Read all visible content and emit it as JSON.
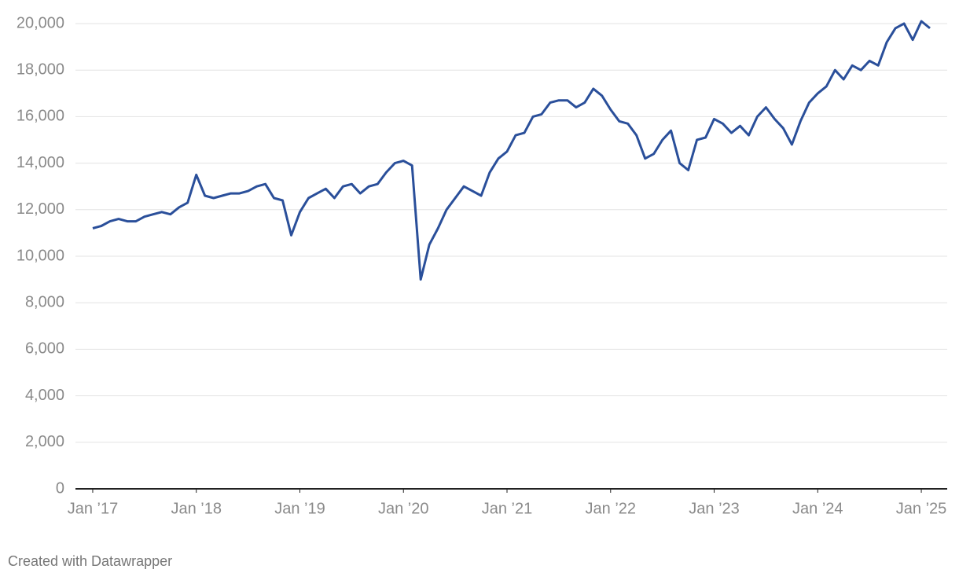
{
  "chart_data": {
    "type": "line",
    "x": [
      "2017-01",
      "2017-02",
      "2017-03",
      "2017-04",
      "2017-05",
      "2017-06",
      "2017-07",
      "2017-08",
      "2017-09",
      "2017-10",
      "2017-11",
      "2017-12",
      "2018-01",
      "2018-02",
      "2018-03",
      "2018-04",
      "2018-05",
      "2018-06",
      "2018-07",
      "2018-08",
      "2018-09",
      "2018-10",
      "2018-11",
      "2018-12",
      "2019-01",
      "2019-02",
      "2019-03",
      "2019-04",
      "2019-05",
      "2019-06",
      "2019-07",
      "2019-08",
      "2019-09",
      "2019-10",
      "2019-11",
      "2019-12",
      "2020-01",
      "2020-02",
      "2020-03",
      "2020-04",
      "2020-05",
      "2020-06",
      "2020-07",
      "2020-08",
      "2020-09",
      "2020-10",
      "2020-11",
      "2020-12",
      "2021-01",
      "2021-02",
      "2021-03",
      "2021-04",
      "2021-05",
      "2021-06",
      "2021-07",
      "2021-08",
      "2021-09",
      "2021-10",
      "2021-11",
      "2021-12",
      "2022-01",
      "2022-02",
      "2022-03",
      "2022-04",
      "2022-05",
      "2022-06",
      "2022-07",
      "2022-08",
      "2022-09",
      "2022-10",
      "2022-11",
      "2022-12",
      "2023-01",
      "2023-02",
      "2023-03",
      "2023-04",
      "2023-05",
      "2023-06",
      "2023-07",
      "2023-08",
      "2023-09",
      "2023-10",
      "2023-11",
      "2023-12",
      "2024-01",
      "2024-02",
      "2024-03",
      "2024-04",
      "2024-05",
      "2024-06",
      "2024-07",
      "2024-08",
      "2024-09",
      "2024-10",
      "2024-11",
      "2024-12",
      "2025-01",
      "2025-02"
    ],
    "values": [
      11200,
      11300,
      11500,
      11600,
      11500,
      11500,
      11700,
      11800,
      11900,
      11800,
      12100,
      12300,
      13500,
      12600,
      12500,
      12600,
      12700,
      12700,
      12800,
      13000,
      13100,
      12500,
      12400,
      10900,
      11900,
      12500,
      12700,
      12900,
      12500,
      13000,
      13100,
      12700,
      13000,
      13100,
      13600,
      14000,
      14100,
      13900,
      9000,
      10500,
      11200,
      12000,
      12500,
      13000,
      12800,
      12600,
      13600,
      14200,
      14500,
      15200,
      15300,
      16000,
      16100,
      16600,
      16700,
      16700,
      16400,
      16600,
      17200,
      16900,
      16300,
      15800,
      15700,
      15200,
      14200,
      14400,
      15000,
      15400,
      14000,
      13700,
      15000,
      15100,
      15900,
      15700,
      15300,
      15600,
      15200,
      16000,
      16400,
      15900,
      15500,
      14800,
      15800,
      16600,
      17000,
      17300,
      18000,
      17600,
      18200,
      18000,
      18400,
      18200,
      19200,
      19800,
      20000,
      19300,
      20100,
      19800
    ],
    "color": "#2a4f9a",
    "xlim": [
      "2016-11",
      "2025-04"
    ],
    "xticks": [
      {
        "value": "2017-01",
        "label": "Jan ’17"
      },
      {
        "value": "2018-01",
        "label": "Jan ’18"
      },
      {
        "value": "2019-01",
        "label": "Jan ’19"
      },
      {
        "value": "2020-01",
        "label": "Jan ’20"
      },
      {
        "value": "2021-01",
        "label": "Jan ’21"
      },
      {
        "value": "2022-01",
        "label": "Jan ’22"
      },
      {
        "value": "2023-01",
        "label": "Jan ’23"
      },
      {
        "value": "2024-01",
        "label": "Jan ’24"
      },
      {
        "value": "2025-01",
        "label": "Jan ’25"
      }
    ],
    "ylim": [
      0,
      20000
    ],
    "yticks": [
      0,
      {
        "value": 2000,
        "label": "2,000"
      },
      {
        "value": 4000,
        "label": "4,000"
      },
      {
        "value": 6000,
        "label": "6,000"
      },
      {
        "value": 8000,
        "label": "8,000"
      },
      {
        "value": 10000,
        "label": "10,000"
      },
      {
        "value": 12000,
        "label": "12,000"
      },
      {
        "value": 14000,
        "label": "14,000"
      },
      {
        "value": 16000,
        "label": "16,000"
      },
      {
        "value": 18000,
        "label": "18,000"
      },
      {
        "value": 20000,
        "label": "20,000"
      }
    ],
    "grid": true,
    "credit": "Created with Datawrapper"
  }
}
